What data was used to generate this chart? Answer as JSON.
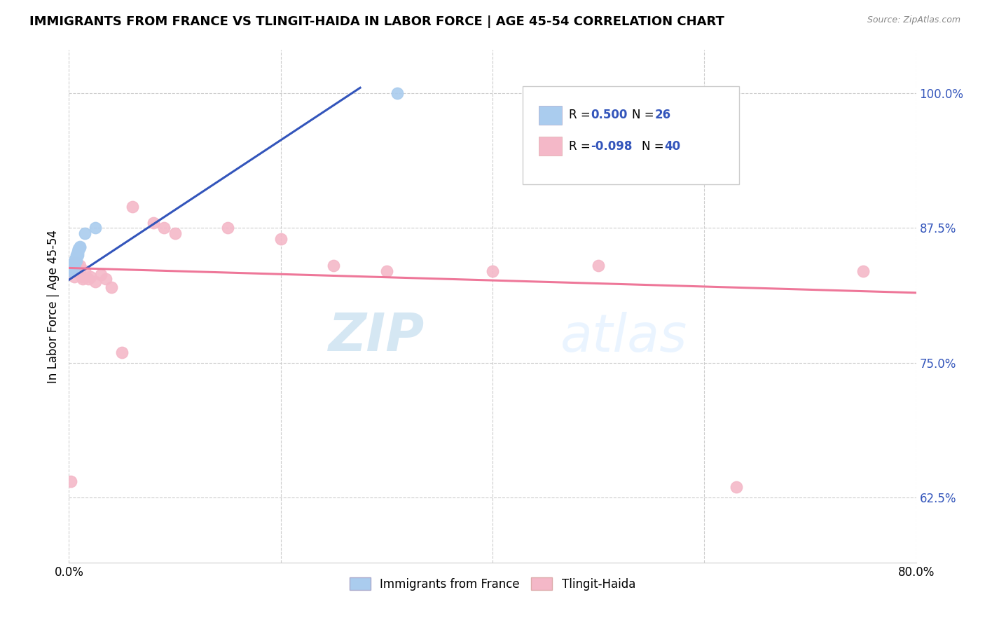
{
  "title": "IMMIGRANTS FROM FRANCE VS TLINGIT-HAIDA IN LABOR FORCE | AGE 45-54 CORRELATION CHART",
  "source": "Source: ZipAtlas.com",
  "ylabel": "In Labor Force | Age 45-54",
  "xlim": [
    0.0,
    0.8
  ],
  "ylim": [
    0.565,
    1.04
  ],
  "ytick_positions": [
    0.625,
    0.75,
    0.875,
    1.0
  ],
  "ytick_labels": [
    "62.5%",
    "75.0%",
    "87.5%",
    "100.0%"
  ],
  "legend1_label": "Immigrants from France",
  "legend2_label": "Tlingit-Haida",
  "r1": "0.500",
  "n1": "26",
  "r2": "-0.098",
  "n2": "40",
  "color_blue": "#aaccee",
  "color_pink": "#f4b8c8",
  "line_blue": "#3355bb",
  "line_pink": "#ee7799",
  "watermark_zip": "ZIP",
  "watermark_atlas": "atlas",
  "france_x": [
    0.002,
    0.003,
    0.003,
    0.004,
    0.004,
    0.004,
    0.005,
    0.005,
    0.005,
    0.005,
    0.006,
    0.006,
    0.006,
    0.007,
    0.007,
    0.007,
    0.008,
    0.008,
    0.008,
    0.009,
    0.009,
    0.01,
    0.01,
    0.015,
    0.025,
    0.31
  ],
  "france_y": [
    0.835,
    0.84,
    0.838,
    0.837,
    0.84,
    0.842,
    0.838,
    0.84,
    0.842,
    0.843,
    0.843,
    0.845,
    0.846,
    0.845,
    0.848,
    0.85,
    0.85,
    0.852,
    0.853,
    0.855,
    0.856,
    0.857,
    0.858,
    0.87,
    0.875,
    1.0
  ],
  "tlingit_x": [
    0.002,
    0.003,
    0.003,
    0.004,
    0.004,
    0.005,
    0.005,
    0.005,
    0.005,
    0.006,
    0.006,
    0.007,
    0.007,
    0.008,
    0.008,
    0.009,
    0.01,
    0.01,
    0.012,
    0.013,
    0.015,
    0.018,
    0.02,
    0.025,
    0.03,
    0.035,
    0.04,
    0.05,
    0.06,
    0.08,
    0.09,
    0.1,
    0.15,
    0.2,
    0.25,
    0.3,
    0.4,
    0.5,
    0.63,
    0.75
  ],
  "tlingit_y": [
    0.64,
    0.835,
    0.838,
    0.84,
    0.842,
    0.835,
    0.838,
    0.84,
    0.83,
    0.84,
    0.843,
    0.843,
    0.838,
    0.84,
    0.838,
    0.835,
    0.84,
    0.837,
    0.83,
    0.828,
    0.835,
    0.828,
    0.83,
    0.825,
    0.832,
    0.828,
    0.82,
    0.76,
    0.895,
    0.88,
    0.875,
    0.87,
    0.875,
    0.865,
    0.84,
    0.835,
    0.835,
    0.84,
    0.635,
    0.835
  ]
}
